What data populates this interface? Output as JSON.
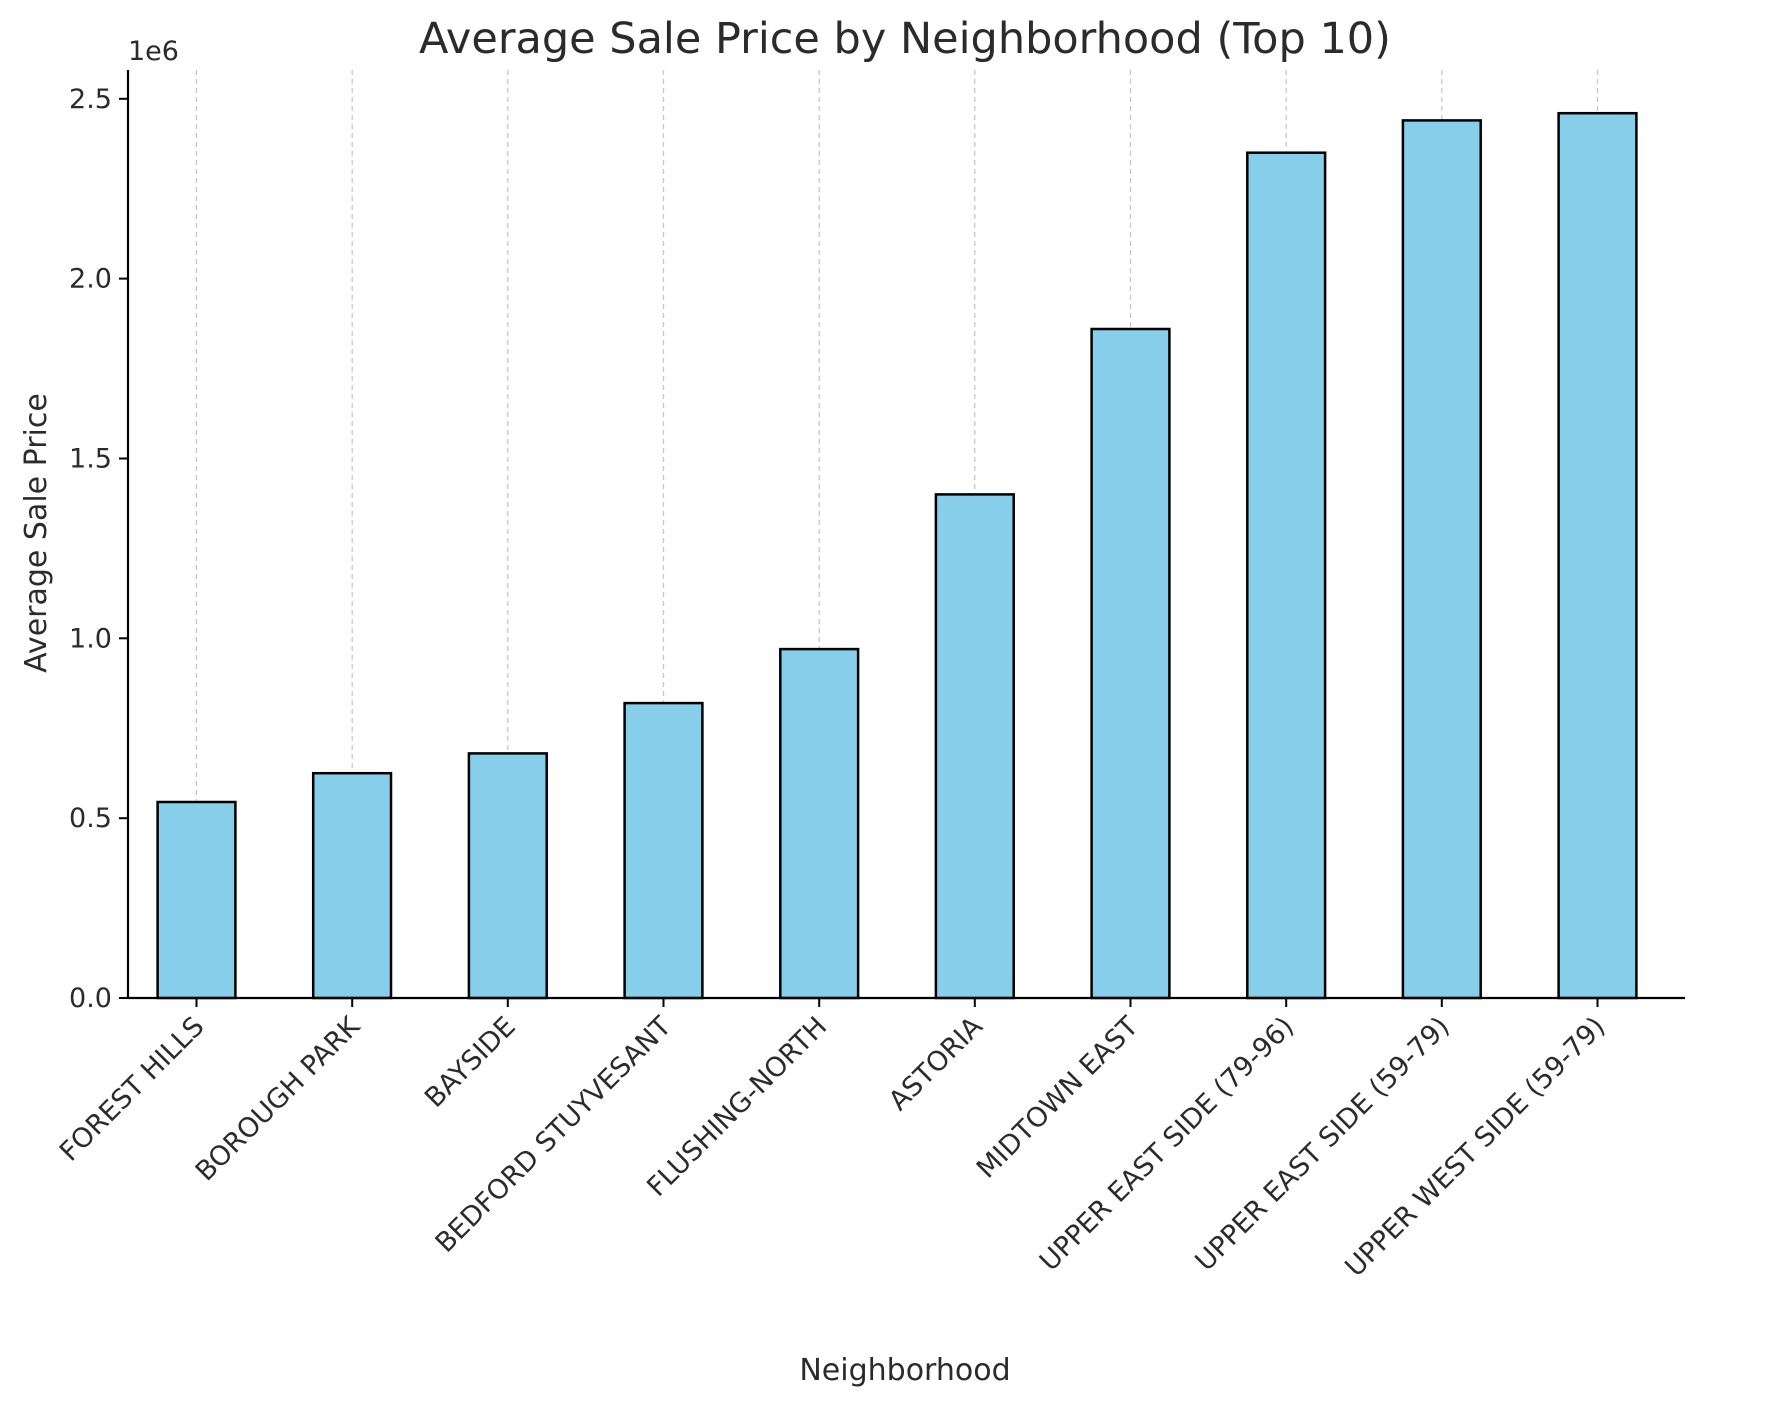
{
  "chart_data": {
    "type": "bar",
    "title": "Average Sale Price by Neighborhood (Top 10)",
    "xlabel": "Neighborhood",
    "ylabel": "Average Sale Price",
    "y_offset_label": "1e6",
    "categories": [
      "FOREST HILLS",
      "BOROUGH PARK",
      "BAYSIDE",
      "BEDFORD STUYVESANT",
      "FLUSHING-NORTH",
      "ASTORIA",
      "MIDTOWN EAST",
      "UPPER EAST SIDE (79-96)",
      "UPPER EAST SIDE (59-79)",
      "UPPER WEST SIDE (59-79)"
    ],
    "values": [
      545000,
      625000,
      680000,
      820000,
      970000,
      1400000,
      1860000,
      2350000,
      2440000,
      2460000
    ],
    "ylim": [
      0,
      2580000
    ],
    "yticks": [
      0,
      500000,
      1000000,
      1500000,
      2000000,
      2500000
    ],
    "ytick_labels": [
      "0.0",
      "0.5",
      "1.0",
      "1.5",
      "2.0",
      "2.5"
    ],
    "grid": "vertical dashed",
    "legend": "none",
    "colors": {
      "bar_fill": "#87ceeb",
      "bar_edge": "#000000",
      "grid": "#c8c8c8",
      "axis": "#000000",
      "text": "#2b2b2b"
    }
  }
}
